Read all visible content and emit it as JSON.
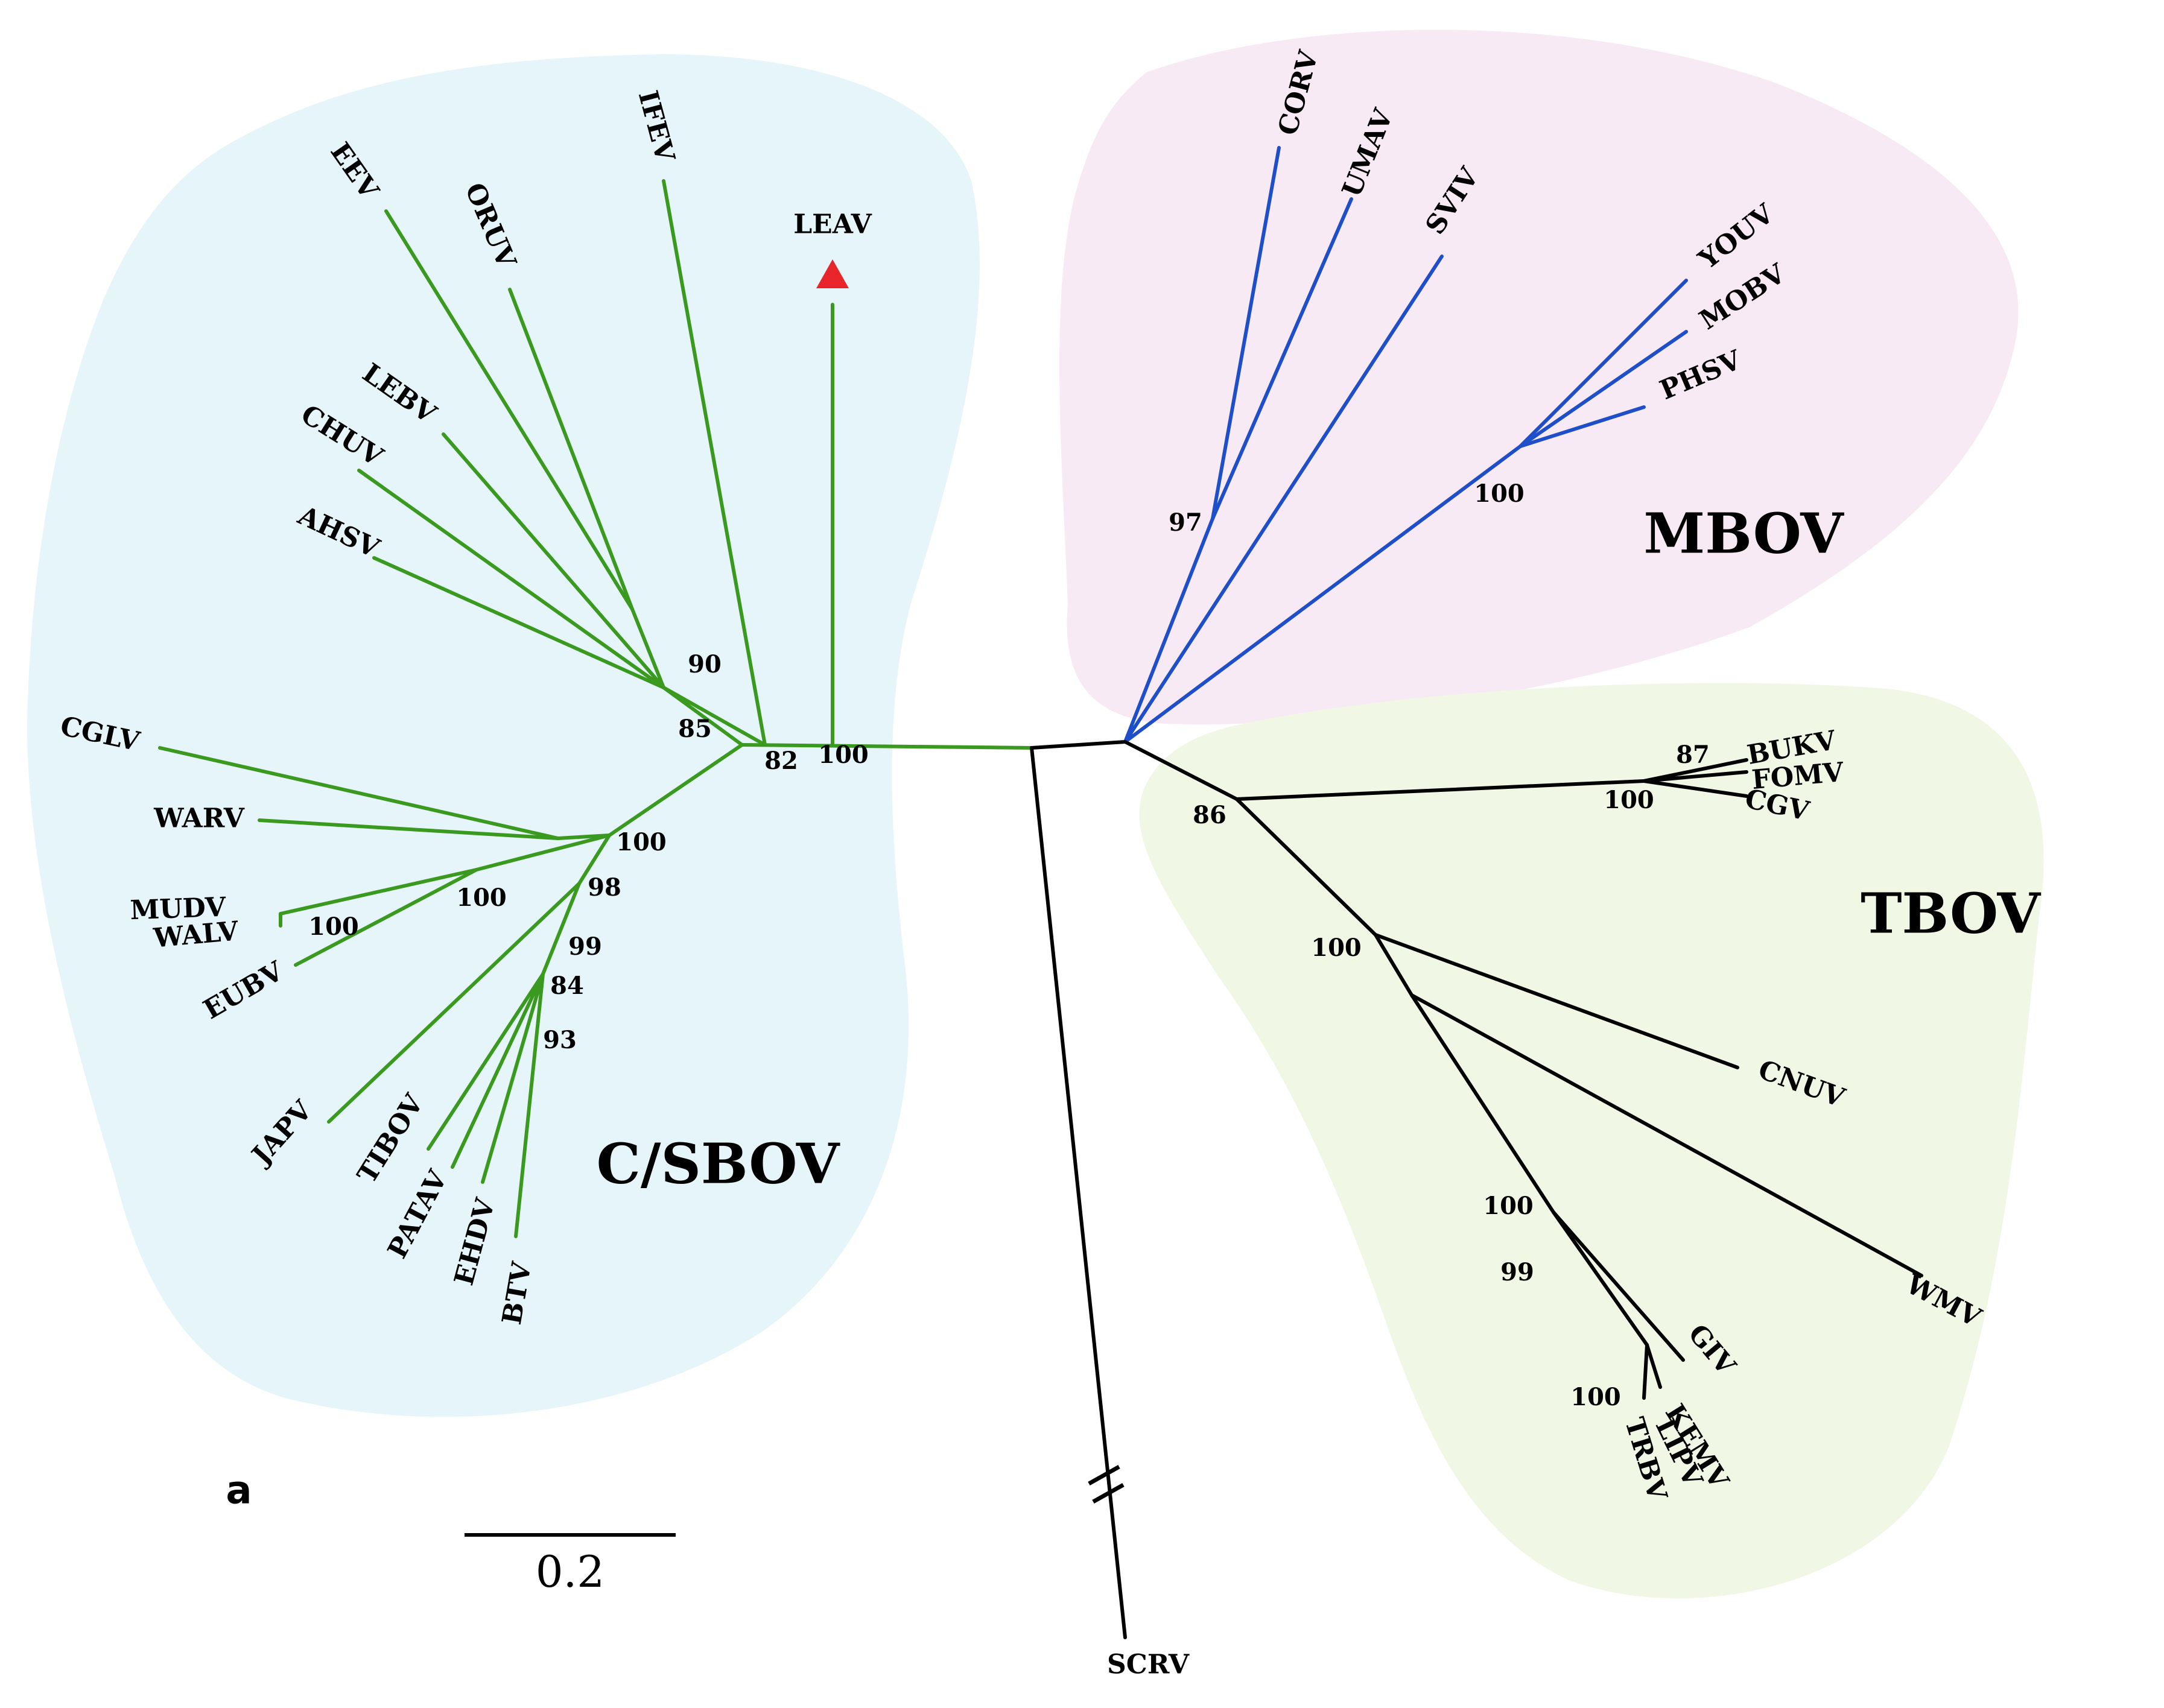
{
  "colors": {
    "csbov_branch": "#3a9a1f",
    "mbov_branch": "#1f4fc8",
    "tbov_branch": "#000000",
    "csbov_bg": "#e6f5f9",
    "mbov_bg": "#f8eaf5",
    "tbov_bg": "#f1f7e5",
    "highlight": "#e8252a"
  },
  "groups": {
    "csbov": "C/SBOV",
    "mbov": "MBOV",
    "tbov": "TBOV"
  },
  "panel_label": "a",
  "scale_bar": {
    "label": "0.2",
    "length": 0.2
  },
  "highlight_taxon": {
    "label": "LEAV",
    "marker": "triangle-icon"
  },
  "outgroup": {
    "label": "SCRV",
    "truncated_marker": "branch-break-icon"
  },
  "taxa": {
    "csbov": [
      "IFEV",
      "EEV",
      "ORUV",
      "LEBV",
      "CHUV",
      "AHSV",
      "CGLV",
      "WARV",
      "MUDV",
      "WALV",
      "EUBV",
      "JAPV",
      "TIBOV",
      "PATAV",
      "EHDV",
      "BTV"
    ],
    "mbov": [
      "CORV",
      "UMAV",
      "SVIV",
      "YOUV",
      "MOBV",
      "PHSV"
    ],
    "tbov": [
      "BUKV",
      "FOMV",
      "CGV",
      "CNUV",
      "WMV",
      "GIV",
      "KEMV",
      "LIPV",
      "TRBV"
    ]
  },
  "bootstrap": {
    "csbov": [
      "90",
      "85",
      "82",
      "100",
      "100",
      "100",
      "100",
      "98",
      "99",
      "84",
      "93"
    ],
    "mbov": [
      "97",
      "100"
    ],
    "tbov": [
      "87",
      "100",
      "86",
      "100",
      "100",
      "99",
      "100"
    ]
  }
}
